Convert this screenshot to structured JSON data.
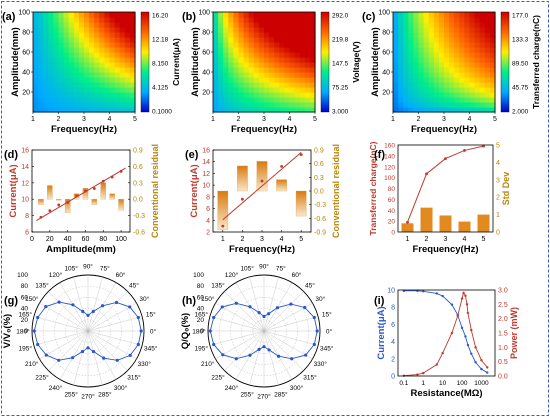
{
  "chart_data": [
    {
      "panel": "(a)",
      "type": "heatmap",
      "xlabel": "Frequency(Hz)",
      "ylabel": "Amplitude(mm)",
      "xlim": [
        1,
        5
      ],
      "ylim": [
        0,
        100
      ],
      "xticks": [
        "1",
        "2",
        "3",
        "4",
        "5"
      ],
      "yticks": [
        "20",
        "40",
        "60",
        "80",
        "100"
      ],
      "colorbar": {
        "label": "Current(μA)",
        "ticks": [
          "16.20",
          "12.18",
          "8.150",
          "4.125",
          "0.1000"
        ]
      }
    },
    {
      "panel": "(b)",
      "type": "heatmap",
      "xlabel": "Frequency(Hz)",
      "ylabel": "Amplitude(mm)",
      "xlim": [
        1,
        5
      ],
      "ylim": [
        0,
        100
      ],
      "xticks": [
        "1",
        "2",
        "3",
        "4",
        "5"
      ],
      "yticks": [
        "20",
        "40",
        "60",
        "80",
        "100"
      ],
      "colorbar": {
        "label": "Voltage(V)",
        "ticks": [
          "292.0",
          "219.8",
          "147.5",
          "75.25",
          "3.000"
        ]
      }
    },
    {
      "panel": "(c)",
      "type": "heatmap",
      "xlabel": "Frequency(Hz)",
      "ylabel": "Amplitude(mm)",
      "xlim": [
        1,
        5
      ],
      "ylim": [
        0,
        100
      ],
      "xticks": [
        "1",
        "2",
        "3",
        "4",
        "5"
      ],
      "yticks": [
        "20",
        "40",
        "60",
        "80",
        "100"
      ],
      "colorbar": {
        "label": "Transferred charge(nC)",
        "ticks": [
          "177.0",
          "133.3",
          "89.50",
          "45.75",
          "2.000"
        ]
      }
    },
    {
      "panel": "(d)",
      "type": "scatter",
      "xlabel": "Amplitude(mm)",
      "ylabel": "Current(μA)",
      "y2label": "Conventional residual",
      "xlim": [
        0,
        110
      ],
      "ylim": [
        6,
        16
      ],
      "y2lim": [
        -0.6,
        0.9
      ],
      "xticks": [
        0,
        20,
        40,
        60,
        80,
        100
      ],
      "yticks": [
        6,
        8,
        10,
        12,
        14,
        16
      ],
      "y2ticks": [
        "-0.6",
        "-0.3",
        "0.0",
        "0.3",
        "0.6",
        "0.9"
      ],
      "points": {
        "x": [
          10,
          20,
          30,
          40,
          50,
          60,
          70,
          80,
          90,
          100
        ],
        "y": [
          7.8,
          8.6,
          9.3,
          9.6,
          10.4,
          11.0,
          11.3,
          12.2,
          12.7,
          13.4
        ]
      },
      "fit": {
        "x": [
          5,
          105
        ],
        "y": [
          7.4,
          13.8
        ]
      },
      "residuals": {
        "x": [
          10,
          20,
          30,
          40,
          50,
          60,
          70,
          80,
          90,
          100
        ],
        "y": [
          -0.1,
          0.25,
          0.0,
          -0.25,
          0.1,
          0.2,
          -0.1,
          0.3,
          0.1,
          -0.2
        ]
      }
    },
    {
      "panel": "(e)",
      "type": "scatter",
      "xlabel": "Frequency(Hz)",
      "ylabel": "Current(μA)",
      "y2label": "Conventional residual",
      "xlim": [
        0.5,
        5.5
      ],
      "ylim": [
        2,
        16
      ],
      "y2lim": [
        -0.9,
        0.9
      ],
      "xticks": [
        1,
        2,
        3,
        4,
        5
      ],
      "yticks": [
        2,
        4,
        6,
        8,
        10,
        12,
        14,
        16
      ],
      "y2ticks": [
        "-0.9",
        "-0.6",
        "-0.3",
        "0.0",
        "0.3",
        "0.6",
        "0.9"
      ],
      "points": {
        "x": [
          1,
          2,
          3,
          4,
          5
        ],
        "y": [
          3.0,
          7.6,
          10.7,
          13.2,
          15.2
        ]
      },
      "fit": {
        "x": [
          1,
          5
        ],
        "y": [
          4.1,
          15.6
        ]
      },
      "residuals": {
        "x": [
          1,
          2,
          3,
          4,
          5
        ],
        "y": [
          -0.85,
          0.55,
          0.65,
          0.25,
          -0.55
        ]
      }
    },
    {
      "panel": "(f)",
      "type": "bar",
      "xlabel": "Frequency(Hz)",
      "ylabel": "Transferred charge(nC)",
      "y2label": "Std Dev",
      "xlim": [
        0.5,
        5.5
      ],
      "ylim": [
        0,
        160
      ],
      "y2lim": [
        0,
        5
      ],
      "xticks": [
        1,
        2,
        3,
        4,
        5
      ],
      "yticks": [
        0,
        20,
        40,
        60,
        80,
        100,
        120,
        140,
        160
      ],
      "y2ticks": [
        0,
        1,
        2,
        3,
        4,
        5
      ],
      "line": {
        "x": [
          1,
          2,
          3,
          4,
          5
        ],
        "y": [
          18,
          107,
          135,
          150,
          158
        ]
      },
      "bars": {
        "x": [
          1,
          2,
          3,
          4,
          5
        ],
        "y": [
          0.5,
          1.4,
          0.95,
          0.6,
          1.0
        ]
      }
    },
    {
      "panel": "(g)",
      "type": "polar",
      "ylabel": "V/V₀(%)",
      "rlim": [
        0,
        100
      ],
      "angle_labels": [
        "0°",
        "15°",
        "30°",
        "45°",
        "60°",
        "75°",
        "90°",
        "105°",
        "120°",
        "135°",
        "150°",
        "165°",
        "180°",
        "195°",
        "210°",
        "225°",
        "240°",
        "255°",
        "270°",
        "285°",
        "300°",
        "315°",
        "330°",
        "345°"
      ],
      "r_labels": [
        "0",
        "20",
        "40",
        "60",
        "80",
        "100"
      ],
      "data_angles": [
        0,
        15,
        30,
        45,
        60,
        75,
        90,
        105,
        120,
        135,
        150,
        165,
        180,
        195,
        210,
        225,
        240,
        255,
        270,
        285,
        300,
        315,
        330,
        345
      ],
      "data_values": [
        95,
        93,
        86,
        72,
        52,
        36,
        28,
        36,
        54,
        73,
        87,
        93,
        96,
        93,
        86,
        74,
        55,
        38,
        30,
        38,
        56,
        74,
        87,
        93
      ]
    },
    {
      "panel": "(h)",
      "type": "polar",
      "ylabel": "Q/Q₀(%)",
      "rlim": [
        0,
        100
      ],
      "angle_labels": [
        "0°",
        "15°",
        "30°",
        "45°",
        "60°",
        "75°",
        "90°",
        "105°",
        "120°",
        "135°",
        "150°",
        "165°",
        "180°",
        "195°",
        "210°",
        "225°",
        "240°",
        "255°",
        "270°",
        "285°",
        "300°",
        "315°",
        "330°",
        "345°"
      ],
      "r_labels": [
        "0",
        "20",
        "40",
        "60",
        "80",
        "100"
      ],
      "data_angles": [
        0,
        15,
        30,
        45,
        60,
        75,
        90,
        105,
        120,
        135,
        150,
        165,
        180,
        195,
        210,
        225,
        240,
        255,
        270,
        285,
        300,
        315,
        330,
        345
      ],
      "data_values": [
        95,
        93,
        84,
        68,
        48,
        32,
        26,
        34,
        50,
        70,
        86,
        93,
        96,
        93,
        85,
        70,
        50,
        34,
        28,
        35,
        52,
        70,
        86,
        93
      ]
    },
    {
      "panel": "(i)",
      "type": "line",
      "xlabel": "Resistance(MΩ)",
      "ylabel": "Current(μA)",
      "y2label": "Power (mW)",
      "xscale": "log",
      "xlim": [
        0.05,
        5000
      ],
      "ylim": [
        0,
        10
      ],
      "y2lim": [
        0,
        3
      ],
      "xticks": [
        "0.1",
        "1",
        "10",
        "100",
        "1000"
      ],
      "yticks": [
        0,
        2,
        4,
        6,
        8,
        10
      ],
      "y2ticks": [
        "0.0",
        "0.5",
        "1.0",
        "1.5",
        "2.0",
        "2.5",
        "3.0"
      ],
      "current": {
        "x": [
          0.1,
          0.5,
          1,
          5,
          10,
          30,
          60,
          100,
          150,
          200,
          300,
          500,
          1000,
          2000
        ],
        "y": [
          9.9,
          9.9,
          9.85,
          9.6,
          9.3,
          8.3,
          7.1,
          5.6,
          4.6,
          3.6,
          2.6,
          1.6,
          0.8,
          0.4
        ]
      },
      "power": {
        "x": [
          0.1,
          0.5,
          1,
          5,
          10,
          30,
          60,
          100,
          120,
          150,
          180,
          200,
          300,
          500,
          1000,
          2000
        ],
        "y": [
          0.01,
          0.05,
          0.1,
          0.4,
          0.8,
          1.5,
          2.1,
          2.7,
          2.9,
          2.8,
          2.5,
          2.2,
          1.6,
          1.0,
          0.55,
          0.3
        ]
      }
    }
  ],
  "colors": {
    "heat": [
      "#0000cc",
      "#00aaff",
      "#00ee88",
      "#ffee00",
      "#ff6600",
      "#cc0000"
    ],
    "red_series": "#c0392b",
    "orange_bars": "#e08a20",
    "olive_axis": "#b8860b",
    "blue_series": "#2a58c8",
    "border": "#3a5bc7"
  }
}
